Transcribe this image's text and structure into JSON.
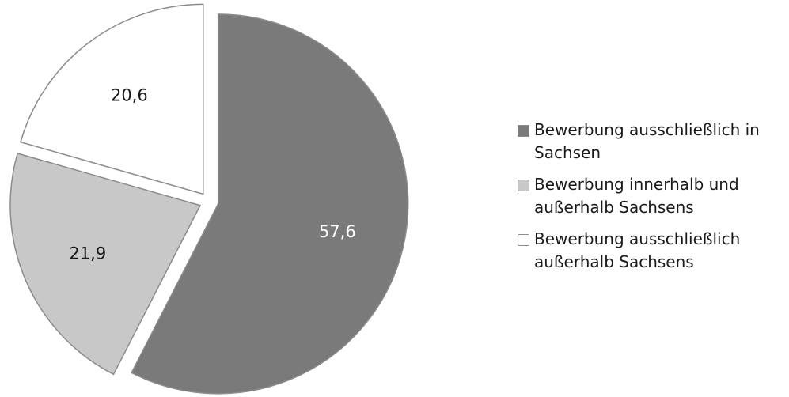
{
  "chart_data": {
    "type": "pie",
    "categories": [
      "Bewerbung ausschließlich in Sachsen",
      "Bewerbung innerhalb und außerhalb Sachsens",
      "Bewerbung ausschließlich außerhalb Sachsens"
    ],
    "values": [
      57.6,
      21.9,
      20.6
    ],
    "data_labels": [
      "57,6",
      "21,9",
      "20,6"
    ],
    "colors": [
      "#7a7a7a",
      "#c8c8c8",
      "#ffffff"
    ],
    "label_colors": [
      "#ffffff",
      "#1a1a1a",
      "#1a1a1a"
    ],
    "start": "12 o'clock, clockwise",
    "exploded": true,
    "legend": {
      "position": "right",
      "items": [
        {
          "lines": [
            "Bewerbung ausschließlich in",
            "Sachsen"
          ],
          "color": "#7a7a7a"
        },
        {
          "lines": [
            "Bewerbung innerhalb und",
            "außerhalb Sachsens"
          ],
          "color": "#c8c8c8"
        },
        {
          "lines": [
            "Bewerbung ausschließlich",
            "außerhalb Sachsens"
          ],
          "color": "#ffffff"
        }
      ]
    }
  }
}
